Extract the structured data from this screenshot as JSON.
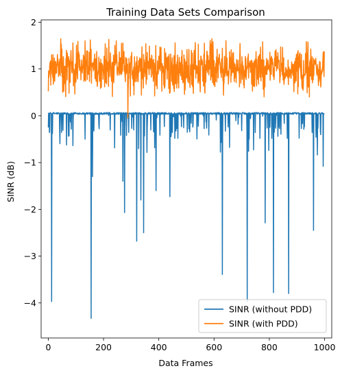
{
  "chart_data": {
    "type": "line",
    "title": "Training Data Sets Comparison",
    "xlabel": "Data Frames",
    "ylabel": "SINR (dB)",
    "xlim": [
      -26,
      1026
    ],
    "ylim": [
      -4.75,
      2.05
    ],
    "xticks": [
      0,
      200,
      400,
      600,
      800,
      1000
    ],
    "xtick_labels": [
      "0",
      "200",
      "400",
      "600",
      "800",
      "1000"
    ],
    "yticks": [
      2,
      1,
      0,
      -1,
      -2,
      -3,
      -4
    ],
    "ytick_labels": [
      "2",
      "1",
      "0",
      "−1",
      "−2",
      "−3",
      "−4"
    ],
    "grid": false,
    "legend_position": "bottom-right",
    "num_points": 1000,
    "series": [
      {
        "name": "SINR (without PDD)",
        "color": "#1f77b4",
        "baseline": 0.05,
        "dip_depth_typical": -0.3,
        "spikes": [
          {
            "x": 12,
            "y": -3.97
          },
          {
            "x": 155,
            "y": -4.33
          },
          {
            "x": 160,
            "y": -1.3
          },
          {
            "x": 133,
            "y": -0.5
          },
          {
            "x": 276,
            "y": -2.07
          },
          {
            "x": 270,
            "y": -1.4
          },
          {
            "x": 320,
            "y": -2.68
          },
          {
            "x": 335,
            "y": -1.8
          },
          {
            "x": 345,
            "y": -2.5
          },
          {
            "x": 390,
            "y": -1.6
          },
          {
            "x": 440,
            "y": -1.73
          },
          {
            "x": 630,
            "y": -3.39
          },
          {
            "x": 720,
            "y": -3.97
          },
          {
            "x": 785,
            "y": -2.29
          },
          {
            "x": 815,
            "y": -3.78
          },
          {
            "x": 870,
            "y": -3.8
          },
          {
            "x": 960,
            "y": -2.45
          },
          {
            "x": 995,
            "y": -1.08
          }
        ]
      },
      {
        "name": "SINR (with PDD)",
        "color": "#ff7f0e",
        "mean": 1.0,
        "min": -0.05,
        "max": 1.72,
        "dips": [
          {
            "x": 288,
            "y": -0.05
          }
        ]
      }
    ]
  }
}
